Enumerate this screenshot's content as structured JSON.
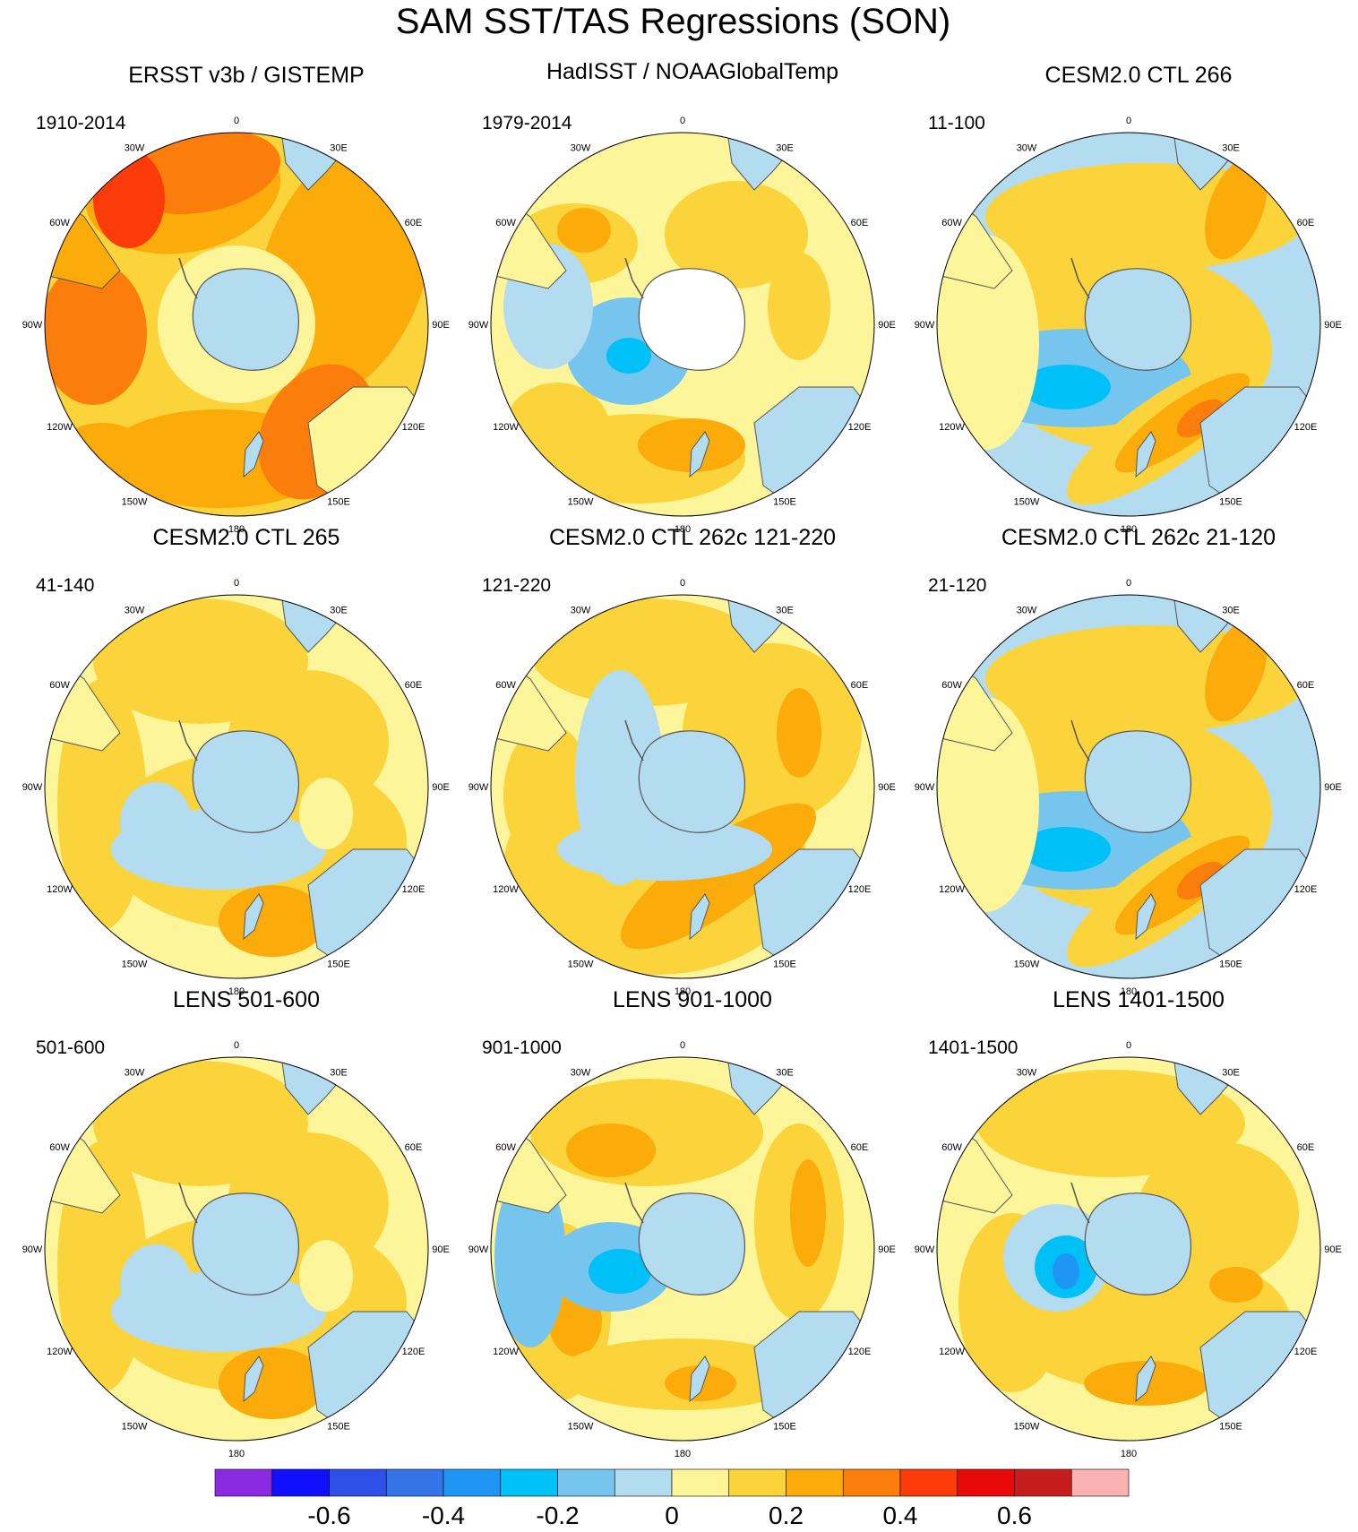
{
  "figure": {
    "title": "SAM SST/TAS Regressions (SON)"
  },
  "lon_labels": [
    "0",
    "30E",
    "60E",
    "90E",
    "120E",
    "150E",
    "180",
    "150W",
    "120W",
    "90W",
    "60W",
    "30W"
  ],
  "panels": [
    {
      "title": "ERSST v3b / GISTEMP",
      "period": "1910-2014",
      "pattern": "warm"
    },
    {
      "title": "HadISST / NOAAGlobalTemp",
      "period": "1979-2014",
      "pattern": "mixed-obs"
    },
    {
      "title": "CESM2.0 CTL 266",
      "period": "11-100",
      "pattern": "model-a"
    },
    {
      "title": "CESM2.0 CTL 265",
      "period": "41-140",
      "pattern": "model-b"
    },
    {
      "title": "CESM2.0 CTL 262c 121-220",
      "period": "121-220",
      "pattern": "model-c"
    },
    {
      "title": "CESM2.0 CTL 262c 21-120",
      "period": "21-120",
      "pattern": "model-a"
    },
    {
      "title": "LENS 501-600",
      "period": "501-600",
      "pattern": "model-b"
    },
    {
      "title": "LENS 901-1000",
      "period": "901-1000",
      "pattern": "model-d"
    },
    {
      "title": "LENS 1401-1500",
      "period": "1401-1500",
      "pattern": "model-e"
    }
  ],
  "chart_data": {
    "type": "heatmap",
    "title": "SAM SST/TAS Regressions (SON)",
    "projection": "south-polar-stereographic",
    "colorbar": {
      "tick_labels": [
        "-0.6",
        "-0.4",
        "-0.2",
        "0",
        "0.2",
        "0.4",
        "0.6"
      ],
      "tick_values": [
        -0.6,
        -0.4,
        -0.2,
        0,
        0.2,
        0.4,
        0.6
      ],
      "levels": [
        -0.7,
        -0.6,
        -0.5,
        -0.4,
        -0.3,
        -0.2,
        -0.1,
        0,
        0.1,
        0.2,
        0.3,
        0.4,
        0.5,
        0.6,
        0.7
      ],
      "colors": [
        "#8a2be2",
        "#1010ff",
        "#2e4fe8",
        "#3573e8",
        "#1f96f5",
        "#00c0f8",
        "#75c5ef",
        "#b3dcf0",
        "#fdf59a",
        "#fbd43c",
        "#fbab0a",
        "#fb7d0b",
        "#fb3b0a",
        "#e80a0a",
        "#c71c1c",
        "#fbb2b2"
      ]
    }
  },
  "colors": {
    "land": "#b3dcf0",
    "coast": "#555555",
    "missing": "#ffffff"
  }
}
